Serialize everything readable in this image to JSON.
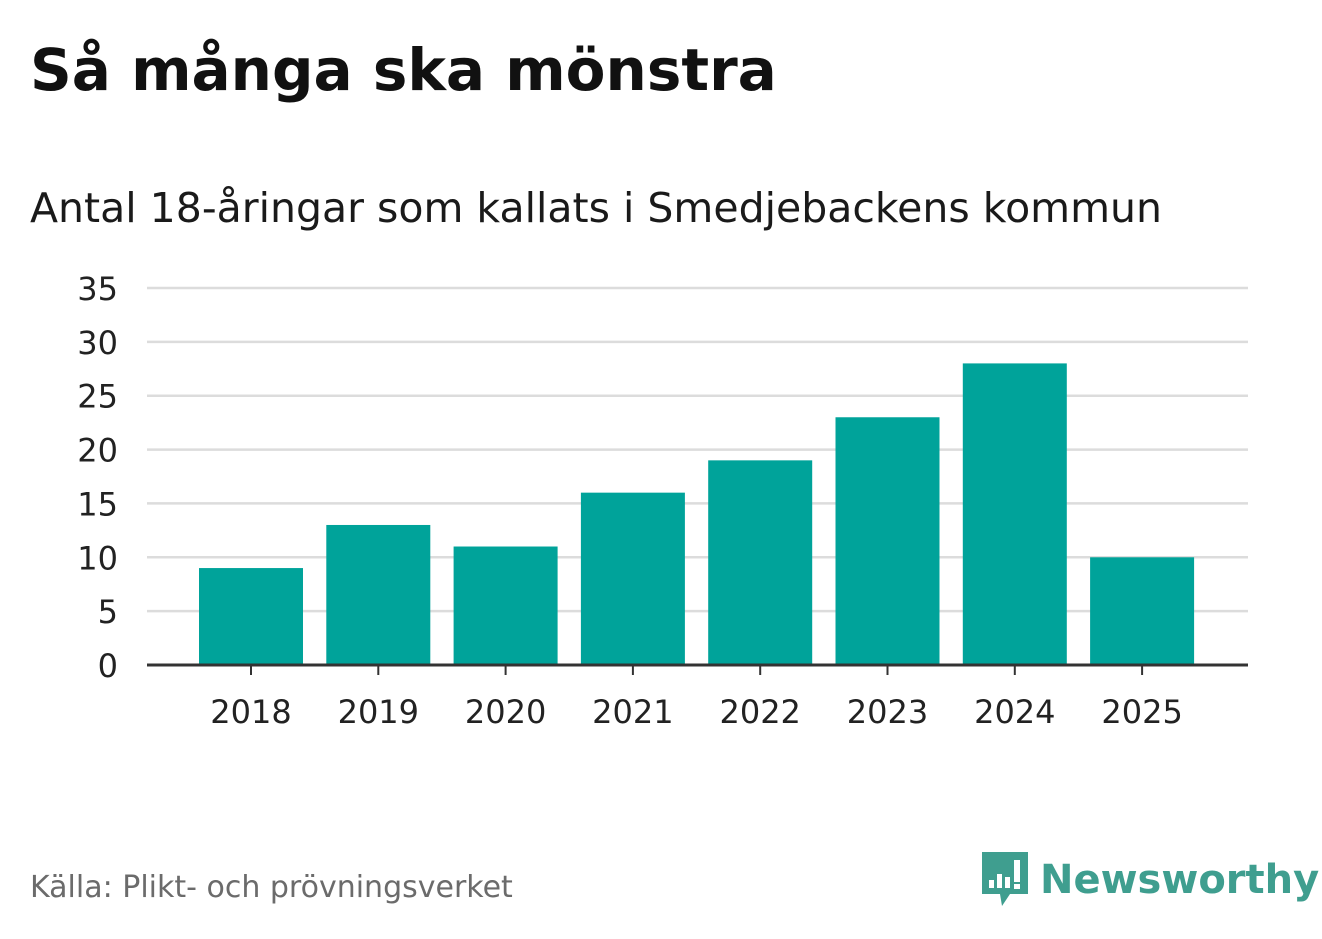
{
  "title": "Så många ska mönstra",
  "subtitle": "Antal 18-åringar som kallats i Smedjebackens kommun",
  "source": "Källa: Plikt- och prövningsverket",
  "brand": {
    "name": "Newsworthy",
    "color": "#3f9e8f"
  },
  "colors": {
    "bar": "#00a39a",
    "grid": "#dcdcdc",
    "axis": "#333333",
    "tick_text": "#222222"
  },
  "chart_data": {
    "type": "bar",
    "title": "Antal 18-åringar som kallats i Smedjebackens kommun",
    "xlabel": "",
    "ylabel": "",
    "categories": [
      "2018",
      "2019",
      "2020",
      "2021",
      "2022",
      "2023",
      "2024",
      "2025"
    ],
    "values": [
      9,
      13,
      11,
      16,
      19,
      23,
      28,
      10
    ],
    "ylim": [
      0,
      35
    ],
    "yticks": [
      0,
      5,
      10,
      15,
      20,
      25,
      30,
      35
    ],
    "grid": true
  }
}
